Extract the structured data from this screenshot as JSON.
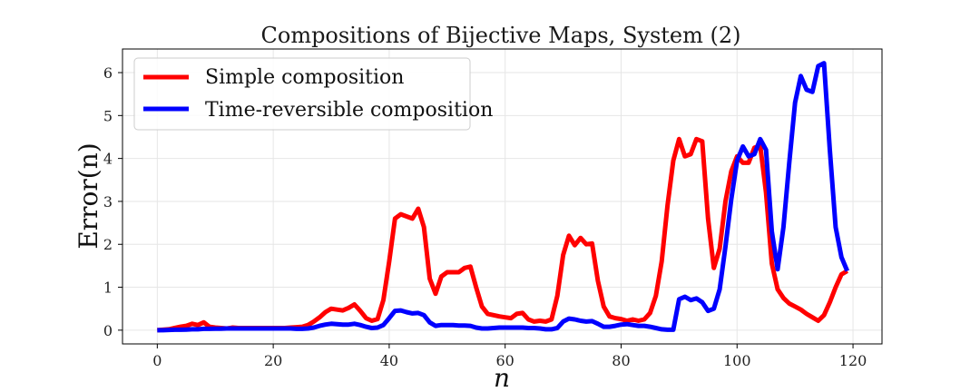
{
  "chart_data": {
    "type": "line",
    "title": "Compositions of Bijective Maps, System (2)",
    "xlabel": "n",
    "ylabel": "Error(n)",
    "xlim": [
      -6,
      125
    ],
    "ylim": [
      -0.32,
      6.55
    ],
    "xticks": [
      0,
      20,
      40,
      60,
      80,
      100,
      120
    ],
    "yticks": [
      0,
      1,
      2,
      3,
      4,
      5,
      6
    ],
    "grid": true,
    "legend_position": "upper-left",
    "series": [
      {
        "name": "Simple composition",
        "color": "#ff0000",
        "x": [
          0,
          1,
          2,
          3,
          4,
          5,
          6,
          7,
          8,
          9,
          10,
          11,
          12,
          13,
          14,
          15,
          16,
          17,
          18,
          19,
          20,
          21,
          22,
          23,
          24,
          25,
          26,
          27,
          28,
          29,
          30,
          31,
          32,
          33,
          34,
          35,
          36,
          37,
          38,
          39,
          40,
          41,
          42,
          43,
          44,
          45,
          46,
          47,
          48,
          49,
          50,
          51,
          52,
          53,
          54,
          55,
          56,
          57,
          58,
          59,
          60,
          61,
          62,
          63,
          64,
          65,
          66,
          67,
          68,
          69,
          70,
          71,
          72,
          73,
          74,
          75,
          76,
          77,
          78,
          79,
          80,
          81,
          82,
          83,
          84,
          85,
          86,
          87,
          88,
          89,
          90,
          91,
          92,
          93,
          94,
          95,
          96,
          97,
          98,
          99,
          100,
          101,
          102,
          103,
          104,
          105,
          106,
          107,
          108,
          109,
          110,
          111,
          112,
          113,
          114,
          115,
          116,
          117,
          118,
          119
        ],
        "values": [
          0,
          0.01,
          0.02,
          0.05,
          0.08,
          0.1,
          0.15,
          0.12,
          0.18,
          0.08,
          0.06,
          0.05,
          0.04,
          0.06,
          0.05,
          0.05,
          0.05,
          0.05,
          0.05,
          0.05,
          0.05,
          0.05,
          0.05,
          0.06,
          0.07,
          0.08,
          0.12,
          0.2,
          0.3,
          0.42,
          0.5,
          0.48,
          0.46,
          0.52,
          0.6,
          0.45,
          0.28,
          0.22,
          0.26,
          0.7,
          1.6,
          2.6,
          2.7,
          2.65,
          2.6,
          2.83,
          2.4,
          1.2,
          0.85,
          1.25,
          1.35,
          1.35,
          1.35,
          1.45,
          1.48,
          1.0,
          0.55,
          0.38,
          0.35,
          0.32,
          0.3,
          0.28,
          0.38,
          0.4,
          0.25,
          0.2,
          0.22,
          0.2,
          0.25,
          0.8,
          1.75,
          2.2,
          1.98,
          2.15,
          2.0,
          2.02,
          1.15,
          0.55,
          0.32,
          0.28,
          0.26,
          0.22,
          0.25,
          0.22,
          0.25,
          0.4,
          0.8,
          1.6,
          2.9,
          3.95,
          4.45,
          4.05,
          4.1,
          4.45,
          4.4,
          2.6,
          1.45,
          1.9,
          3.0,
          3.7,
          4.05,
          3.9,
          3.9,
          4.25,
          4.3,
          3.2,
          1.55,
          0.95,
          0.75,
          0.62,
          0.55,
          0.48,
          0.38,
          0.3,
          0.22,
          0.35,
          0.65,
          1.0,
          1.3,
          1.38
        ]
      },
      {
        "name": "Time-reversible composition",
        "color": "#0000ff",
        "x": [
          0,
          1,
          2,
          3,
          4,
          5,
          6,
          7,
          8,
          9,
          10,
          11,
          12,
          13,
          14,
          15,
          16,
          17,
          18,
          19,
          20,
          21,
          22,
          23,
          24,
          25,
          26,
          27,
          28,
          29,
          30,
          31,
          32,
          33,
          34,
          35,
          36,
          37,
          38,
          39,
          40,
          41,
          42,
          43,
          44,
          45,
          46,
          47,
          48,
          49,
          50,
          51,
          52,
          53,
          54,
          55,
          56,
          57,
          58,
          59,
          60,
          61,
          62,
          63,
          64,
          65,
          66,
          67,
          68,
          69,
          70,
          71,
          72,
          73,
          74,
          75,
          76,
          77,
          78,
          79,
          80,
          81,
          82,
          83,
          84,
          85,
          86,
          87,
          88,
          89,
          90,
          91,
          92,
          93,
          94,
          95,
          96,
          97,
          98,
          99,
          100,
          101,
          102,
          103,
          104,
          105,
          106,
          107,
          108,
          109,
          110,
          111,
          112,
          113,
          114,
          115,
          116,
          117,
          118,
          119
        ],
        "values": [
          0,
          0,
          0.005,
          0.01,
          0.01,
          0.015,
          0.02,
          0.02,
          0.03,
          0.03,
          0.035,
          0.035,
          0.04,
          0.04,
          0.04,
          0.04,
          0.04,
          0.04,
          0.04,
          0.04,
          0.04,
          0.04,
          0.04,
          0.04,
          0.03,
          0.03,
          0.04,
          0.06,
          0.1,
          0.13,
          0.15,
          0.14,
          0.13,
          0.13,
          0.15,
          0.12,
          0.08,
          0.05,
          0.06,
          0.12,
          0.28,
          0.45,
          0.46,
          0.42,
          0.39,
          0.4,
          0.35,
          0.18,
          0.1,
          0.12,
          0.12,
          0.12,
          0.11,
          0.11,
          0.1,
          0.06,
          0.04,
          0.04,
          0.05,
          0.06,
          0.06,
          0.06,
          0.06,
          0.06,
          0.05,
          0.05,
          0.04,
          0.02,
          0.02,
          0.05,
          0.2,
          0.27,
          0.25,
          0.22,
          0.2,
          0.21,
          0.15,
          0.08,
          0.08,
          0.1,
          0.13,
          0.14,
          0.12,
          0.1,
          0.1,
          0.08,
          0.05,
          0.02,
          0.01,
          0.01,
          0.72,
          0.78,
          0.7,
          0.74,
          0.65,
          0.45,
          0.5,
          0.95,
          1.95,
          3.05,
          3.95,
          4.28,
          4.05,
          4.1,
          4.45,
          4.2,
          2.3,
          1.42,
          2.4,
          3.9,
          5.3,
          5.92,
          5.6,
          5.55,
          6.15,
          6.22,
          4.2,
          2.4,
          1.7,
          1.38
        ]
      }
    ]
  }
}
